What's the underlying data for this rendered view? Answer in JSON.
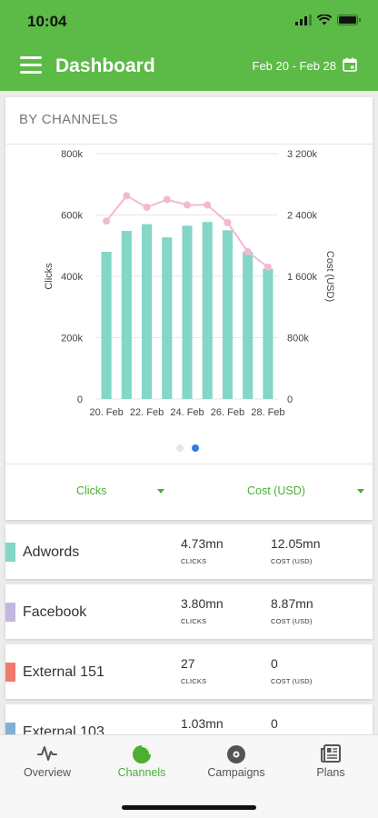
{
  "status_bar": {
    "time": "10:04"
  },
  "header": {
    "title": "Dashboard",
    "date_range": "Feb 20 - Feb 28"
  },
  "card": {
    "title": "BY CHANNELS",
    "left_selector": "Clicks",
    "right_selector": "Cost (USD)",
    "page_count": 2,
    "active_page": 1
  },
  "chart_data": {
    "type": "bar",
    "categories": [
      "20. Feb",
      "21. Feb",
      "22. Feb",
      "23. Feb",
      "24. Feb",
      "25. Feb",
      "26. Feb",
      "27. Feb",
      "28. Feb"
    ],
    "x_tick_labels": [
      "20. Feb",
      "22. Feb",
      "24. Feb",
      "26. Feb",
      "28. Feb"
    ],
    "ylabel": "Clicks",
    "ylabel_right": "Cost (USD)",
    "ylim": [
      0,
      800000
    ],
    "ylim_right": [
      0,
      3200000
    ],
    "y_ticks": [
      "0",
      "200k",
      "400k",
      "600k",
      "800k"
    ],
    "y_ticks_right": [
      "0",
      "800k",
      "1 600k",
      "2 400k",
      "3 200k"
    ],
    "grid": true,
    "series": [
      {
        "name": "Clicks",
        "type": "bar",
        "axis": "left",
        "color": "#84d6c6",
        "values": [
          480000,
          548000,
          570000,
          527000,
          565000,
          577000,
          550000,
          480000,
          425000
        ]
      },
      {
        "name": "Cost (USD)",
        "type": "line",
        "axis": "right",
        "color": "#f4b8d2",
        "values": [
          2320000,
          2650000,
          2500000,
          2600000,
          2530000,
          2530000,
          2300000,
          1920000,
          1720000
        ]
      }
    ]
  },
  "channels": [
    {
      "name": "Adwords",
      "color": "#84d6c6",
      "clicks": "4.73mn",
      "cost": "12.05mn",
      "clicks_label": "CLICKS",
      "cost_label": "COST (USD)"
    },
    {
      "name": "Facebook",
      "color": "#c2b7e0",
      "clicks": "3.80mn",
      "cost": "8.87mn",
      "clicks_label": "CLICKS",
      "cost_label": "COST (USD)"
    },
    {
      "name": "External 151",
      "color": "#f07b6d",
      "clicks": "27",
      "cost": "0",
      "clicks_label": "CLICKS",
      "cost_label": "COST (USD)"
    },
    {
      "name": "External 103",
      "color": "#7fb0d8",
      "clicks": "1.03mn",
      "cost": "0",
      "clicks_label": "",
      "cost_label": ""
    }
  ],
  "nav": {
    "items": [
      {
        "label": "Overview",
        "icon": "pulse-icon"
      },
      {
        "label": "Channels",
        "icon": "pie-chart-icon"
      },
      {
        "label": "Campaigns",
        "icon": "disc-icon"
      },
      {
        "label": "Plans",
        "icon": "newspaper-icon"
      }
    ],
    "active": 1
  }
}
